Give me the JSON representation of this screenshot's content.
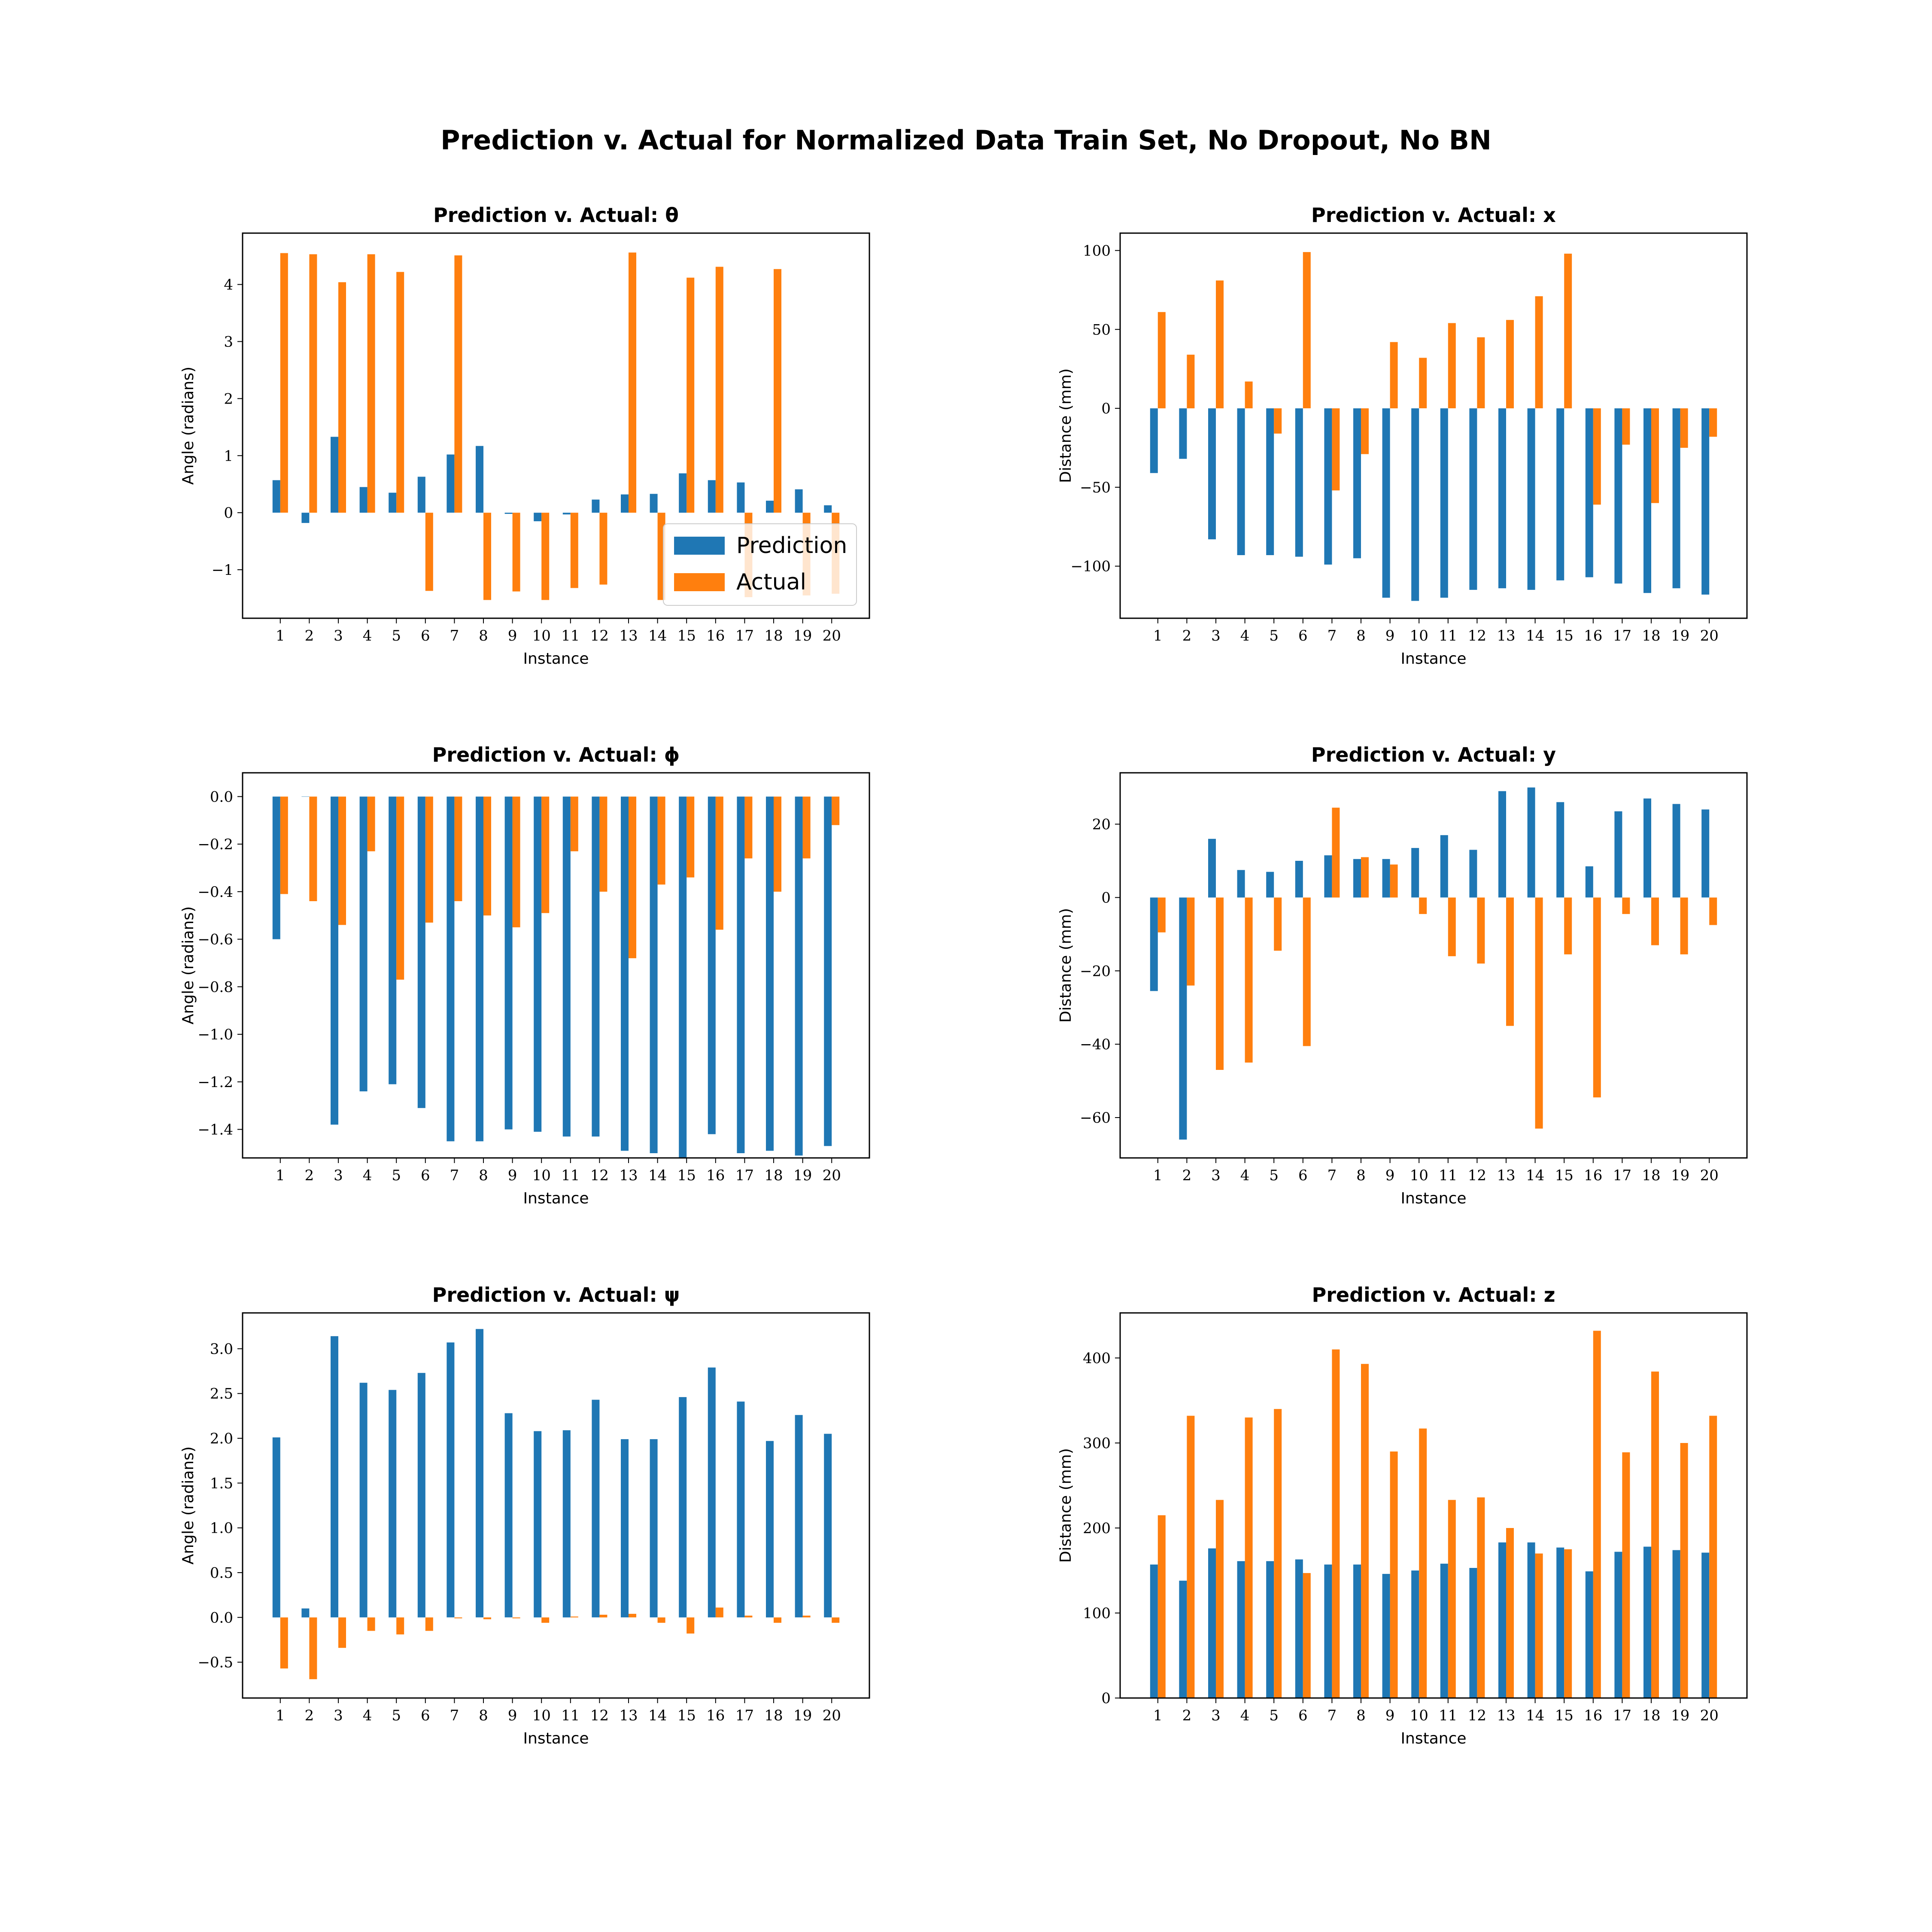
{
  "suptitle": "Prediction v. Actual for Normalized Data Train Set, No Dropout, No BN",
  "colors": {
    "prediction": "#1f77b4",
    "actual": "#ff7f0e"
  },
  "chart_data": [
    {
      "type": "bar",
      "title": "Prediction v. Actual: θ",
      "xlabel": "Instance",
      "ylabel": "Angle (radians)",
      "categories": [
        "1",
        "2",
        "3",
        "4",
        "5",
        "6",
        "7",
        "8",
        "9",
        "10",
        "11",
        "12",
        "13",
        "14",
        "15",
        "16",
        "17",
        "18",
        "19",
        "20"
      ],
      "ylim": [
        -1.85,
        4.9
      ],
      "yticks": [
        -1,
        0,
        1,
        2,
        3,
        4
      ],
      "ytick_labels": [
        "−1",
        "0",
        "1",
        "2",
        "3",
        "4"
      ],
      "legend": "lower-right",
      "series": [
        {
          "name": "Prediction",
          "values": [
            0.57,
            -0.18,
            1.33,
            0.45,
            0.35,
            0.63,
            1.02,
            1.17,
            -0.02,
            -0.15,
            -0.03,
            0.23,
            0.32,
            0.33,
            0.69,
            0.57,
            0.53,
            0.21,
            0.41,
            0.13
          ]
        },
        {
          "name": "Actual",
          "values": [
            4.55,
            4.53,
            4.04,
            4.53,
            4.22,
            -1.37,
            4.51,
            -1.53,
            -1.38,
            -1.53,
            -1.32,
            -1.26,
            4.56,
            -1.53,
            4.12,
            4.31,
            -1.48,
            4.27,
            -1.45,
            -1.42
          ]
        }
      ]
    },
    {
      "type": "bar",
      "title": "Prediction v. Actual: x",
      "xlabel": "Instance",
      "ylabel": "Distance (mm)",
      "categories": [
        "1",
        "2",
        "3",
        "4",
        "5",
        "6",
        "7",
        "8",
        "9",
        "10",
        "11",
        "12",
        "13",
        "14",
        "15",
        "16",
        "17",
        "18",
        "19",
        "20"
      ],
      "ylim": [
        -133,
        111
      ],
      "yticks": [
        -100,
        -50,
        0,
        50,
        100
      ],
      "ytick_labels": [
        "−100",
        "−50",
        "0",
        "50",
        "100"
      ],
      "series": [
        {
          "name": "Prediction",
          "values": [
            -41,
            -32,
            -83,
            -93,
            -93,
            -94,
            -99,
            -95,
            -120,
            -122,
            -120,
            -115,
            -114,
            -115,
            -109,
            -107,
            -111,
            -117,
            -114,
            -118
          ]
        },
        {
          "name": "Actual",
          "values": [
            61,
            34,
            81,
            17,
            -16,
            99,
            -52,
            -29,
            42,
            32,
            54,
            45,
            56,
            71,
            98,
            -61,
            -23,
            -60,
            -25,
            -18
          ]
        }
      ]
    },
    {
      "type": "bar",
      "title": "Prediction v. Actual: ϕ",
      "xlabel": "Instance",
      "ylabel": "Angle (radians)",
      "categories": [
        "1",
        "2",
        "3",
        "4",
        "5",
        "6",
        "7",
        "8",
        "9",
        "10",
        "11",
        "12",
        "13",
        "14",
        "15",
        "16",
        "17",
        "18",
        "19",
        "20"
      ],
      "ylim": [
        -1.52,
        0.1
      ],
      "yticks": [
        -1.4,
        -1.2,
        -1.0,
        -0.8,
        -0.6,
        -0.4,
        -0.2,
        0.0
      ],
      "ytick_labels": [
        "−1.4",
        "−1.2",
        "−1.0",
        "−0.8",
        "−0.6",
        "−0.4",
        "−0.2",
        "0.0"
      ],
      "series": [
        {
          "name": "Prediction",
          "values": [
            -0.6,
            0.0,
            -1.38,
            -1.24,
            -1.21,
            -1.31,
            -1.45,
            -1.45,
            -1.4,
            -1.41,
            -1.43,
            -1.43,
            -1.49,
            -1.5,
            -1.52,
            -1.42,
            -1.5,
            -1.49,
            -1.51,
            -1.47
          ]
        },
        {
          "name": "Actual",
          "values": [
            -0.41,
            -0.44,
            -0.54,
            -0.23,
            -0.77,
            -0.53,
            -0.44,
            -0.5,
            -0.55,
            -0.49,
            -0.23,
            -0.4,
            -0.68,
            -0.37,
            -0.34,
            -0.56,
            -0.26,
            -0.4,
            -0.26,
            -0.12
          ]
        }
      ]
    },
    {
      "type": "bar",
      "title": "Prediction v. Actual: y",
      "xlabel": "Instance",
      "ylabel": "Distance (mm)",
      "categories": [
        "1",
        "2",
        "3",
        "4",
        "5",
        "6",
        "7",
        "8",
        "9",
        "10",
        "11",
        "12",
        "13",
        "14",
        "15",
        "16",
        "17",
        "18",
        "19",
        "20"
      ],
      "ylim": [
        -71,
        34
      ],
      "yticks": [
        -60,
        -40,
        -20,
        0,
        20
      ],
      "ytick_labels": [
        "−60",
        "−40",
        "−20",
        "0",
        "20"
      ],
      "series": [
        {
          "name": "Prediction",
          "values": [
            -25.5,
            -66,
            16,
            7.5,
            7,
            10,
            11.5,
            10.5,
            10.5,
            13.5,
            17,
            13,
            29,
            30,
            26,
            8.5,
            23.5,
            27,
            25.5,
            24
          ]
        },
        {
          "name": "Actual",
          "values": [
            -9.5,
            -24,
            -47,
            -45,
            -14.5,
            -40.5,
            24.5,
            11,
            9,
            -4.5,
            -16,
            -18,
            -35,
            -63,
            -15.5,
            -54.5,
            -4.5,
            -13,
            -15.5,
            -7.5
          ]
        }
      ]
    },
    {
      "type": "bar",
      "title": "Prediction v. Actual: ψ",
      "xlabel": "Instance",
      "ylabel": "Angle (radians)",
      "categories": [
        "1",
        "2",
        "3",
        "4",
        "5",
        "6",
        "7",
        "8",
        "9",
        "10",
        "11",
        "12",
        "13",
        "14",
        "15",
        "16",
        "17",
        "18",
        "19",
        "20"
      ],
      "ylim": [
        -0.9,
        3.4
      ],
      "yticks": [
        -0.5,
        0.0,
        0.5,
        1.0,
        1.5,
        2.0,
        2.5,
        3.0
      ],
      "ytick_labels": [
        "−0.5",
        "0.0",
        "0.5",
        "1.0",
        "1.5",
        "2.0",
        "2.5",
        "3.0"
      ],
      "series": [
        {
          "name": "Prediction",
          "values": [
            2.01,
            0.1,
            3.14,
            2.62,
            2.54,
            2.73,
            3.07,
            3.22,
            2.28,
            2.08,
            2.09,
            2.43,
            1.99,
            1.99,
            2.46,
            2.79,
            2.41,
            1.97,
            2.26,
            2.05
          ]
        },
        {
          "name": "Actual",
          "values": [
            -0.57,
            -0.69,
            -0.34,
            -0.15,
            -0.19,
            -0.15,
            -0.01,
            -0.02,
            -0.01,
            -0.06,
            0.01,
            0.03,
            0.04,
            -0.06,
            -0.18,
            0.11,
            0.02,
            -0.06,
            0.02,
            -0.06
          ]
        }
      ]
    },
    {
      "type": "bar",
      "title": "Prediction v. Actual: z",
      "xlabel": "Instance",
      "ylabel": "Distance (mm)",
      "categories": [
        "1",
        "2",
        "3",
        "4",
        "5",
        "6",
        "7",
        "8",
        "9",
        "10",
        "11",
        "12",
        "13",
        "14",
        "15",
        "16",
        "17",
        "18",
        "19",
        "20"
      ],
      "ylim": [
        0,
        453
      ],
      "yticks": [
        0,
        100,
        200,
        300,
        400
      ],
      "ytick_labels": [
        "0",
        "100",
        "200",
        "300",
        "400"
      ],
      "series": [
        {
          "name": "Prediction",
          "values": [
            157,
            138,
            176,
            161,
            161,
            163,
            157,
            157,
            146,
            150,
            158,
            153,
            183,
            183,
            177,
            149,
            172,
            178,
            174,
            171
          ]
        },
        {
          "name": "Actual",
          "values": [
            215,
            332,
            233,
            330,
            340,
            147,
            410,
            393,
            290,
            317,
            233,
            236,
            200,
            170,
            175,
            432,
            289,
            384,
            300,
            332
          ]
        }
      ]
    }
  ]
}
